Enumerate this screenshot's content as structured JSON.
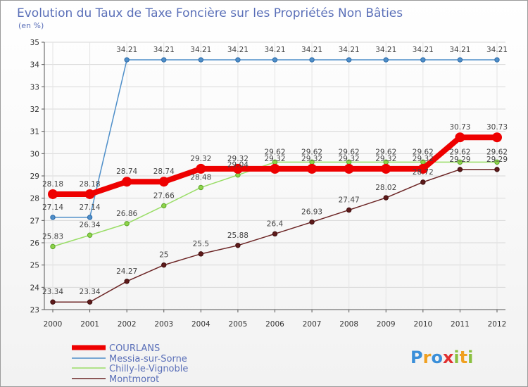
{
  "chart_data": {
    "type": "line",
    "title": "Evolution du Taux de Taxe Foncière sur les Propriétés Non Bâties",
    "subtitle": "(en %)",
    "x": [
      "2000",
      "2001",
      "2002",
      "2003",
      "2004",
      "2005",
      "2006",
      "2007",
      "2008",
      "2009",
      "2010",
      "2011",
      "2012"
    ],
    "ylim": [
      23,
      35
    ],
    "yticks": [
      "23",
      "24",
      "25",
      "26",
      "27",
      "28",
      "29",
      "30",
      "31",
      "32",
      "33",
      "34",
      "35"
    ],
    "grid": true,
    "series": [
      {
        "name": "COURLANS",
        "color": "#ee0000",
        "values": [
          28.18,
          28.18,
          28.74,
          28.74,
          29.32,
          29.32,
          29.32,
          29.32,
          29.32,
          29.32,
          29.32,
          30.73,
          30.73
        ],
        "labels": [
          "28.18",
          "28.18",
          "28.74",
          "28.74",
          "29.32",
          "29.32",
          "29.32",
          "29.32",
          "29.32",
          "29.32",
          "29.32",
          "30.73",
          "30.73"
        ]
      },
      {
        "name": "Messia-sur-Sorne",
        "color": "#4f8fc9",
        "values": [
          27.14,
          27.14,
          34.21,
          34.21,
          34.21,
          34.21,
          34.21,
          34.21,
          34.21,
          34.21,
          34.21,
          34.21,
          34.21
        ],
        "labels": [
          "27.14",
          "27.14",
          "34.21",
          "34.21",
          "34.21",
          "34.21",
          "34.21",
          "34.21",
          "34.21",
          "34.21",
          "34.21",
          "34.21",
          "34.21"
        ]
      },
      {
        "name": "Chilly-le-Vignoble",
        "color": "#99dd66",
        "values": [
          25.83,
          26.34,
          26.86,
          27.66,
          28.48,
          29.04,
          29.62,
          29.62,
          29.62,
          29.62,
          29.62,
          29.62,
          29.62
        ],
        "labels": [
          "25.83",
          "26.34",
          "26.86",
          "27.66",
          "28.48",
          "29.04",
          "29.62",
          "29.62",
          "29.62",
          "29.62",
          "29.62",
          "29.62",
          "29.62"
        ]
      },
      {
        "name": "Montmorot",
        "color": "#6b2424",
        "values": [
          23.34,
          23.34,
          24.27,
          25,
          25.5,
          25.88,
          26.4,
          26.93,
          27.47,
          28.02,
          28.72,
          29.29,
          29.29
        ],
        "labels": [
          "23.34",
          "23.34",
          "24.27",
          "25",
          "25.5",
          "25.88",
          "26.4",
          "26.93",
          "27.47",
          "28.02",
          "28.72",
          "29.29",
          "29.29"
        ]
      }
    ]
  },
  "legend": [
    {
      "label": "COURLANS",
      "color": "#ee0000"
    },
    {
      "label": "Messia-sur-Sorne",
      "color": "#4f8fc9"
    },
    {
      "label": "Chilly-le-Vignoble",
      "color": "#99dd66"
    },
    {
      "label": "Montmorot",
      "color": "#6b2424"
    }
  ],
  "logo": {
    "letters": [
      "P",
      "r",
      "o",
      "x",
      "i",
      "t",
      "i"
    ],
    "colors": [
      "#3a8fd9",
      "#f0a020",
      "#3a8fd9",
      "#e03030",
      "#8ac040",
      "#f0a020",
      "#8ac040"
    ]
  }
}
